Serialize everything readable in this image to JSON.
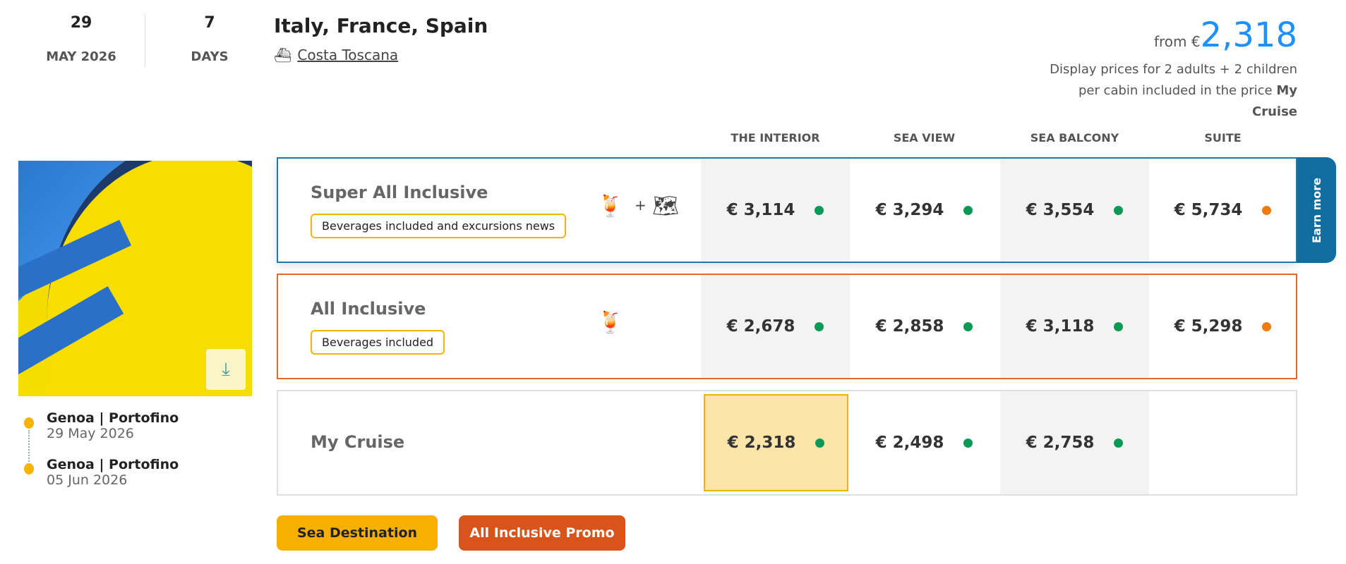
{
  "header": {
    "day": "29",
    "month_year": "MAY 2026",
    "duration": "7",
    "duration_unit": "DAYS",
    "title": "Italy, France, Spain",
    "ship": "Costa Toscana"
  },
  "price_summary": {
    "from_label": "from €",
    "from_price": "2,318",
    "note": "Display prices for 2 adults + 2 children per cabin included in the price",
    "note_bold": "My Cruise",
    "price_color": "#1e90ff"
  },
  "columns": [
    "THE INTERIOR",
    "SEA VIEW",
    "SEA BALCONY",
    "SUITE"
  ],
  "rows": [
    {
      "name": "Super All Inclusive",
      "badge": "Beverages included and excursions news",
      "icons": [
        "drink-icon",
        "plus",
        "map-icon"
      ],
      "prices": [
        {
          "v": "€  3,114",
          "s": "green"
        },
        {
          "v": "€  3,294",
          "s": "green"
        },
        {
          "v": "€  3,554",
          "s": "green"
        },
        {
          "v": "€  5,734",
          "s": "orange"
        }
      ]
    },
    {
      "name": "All Inclusive",
      "badge": "Beverages included",
      "icons": [
        "drink-icon"
      ],
      "prices": [
        {
          "v": "€  2,678",
          "s": "green"
        },
        {
          "v": "€  2,858",
          "s": "green"
        },
        {
          "v": "€  3,118",
          "s": "green"
        },
        {
          "v": "€  5,298",
          "s": "orange"
        }
      ]
    },
    {
      "name": "My Cruise",
      "prices": [
        {
          "v": "€  2,318",
          "s": "green",
          "selected": true
        },
        {
          "v": "€  2,498",
          "s": "green"
        },
        {
          "v": "€  2,758",
          "s": "green"
        }
      ]
    }
  ],
  "earn_more": "Earn more",
  "itinerary": [
    {
      "port": "Genoa | Portofino",
      "date": "29 May 2026"
    },
    {
      "port": "Genoa | Portofino",
      "date": "05 Jun 2026"
    }
  ],
  "tags": {
    "sea_destination": "Sea Destination",
    "promo": "All Inclusive Promo"
  },
  "colors": {
    "green": "#0a9a55",
    "orange": "#ef7a10",
    "accent_blue": "#0f6e9f",
    "orange_border": "#e06a2c",
    "yellow": "#f5b400",
    "promo": "#d9541a"
  }
}
